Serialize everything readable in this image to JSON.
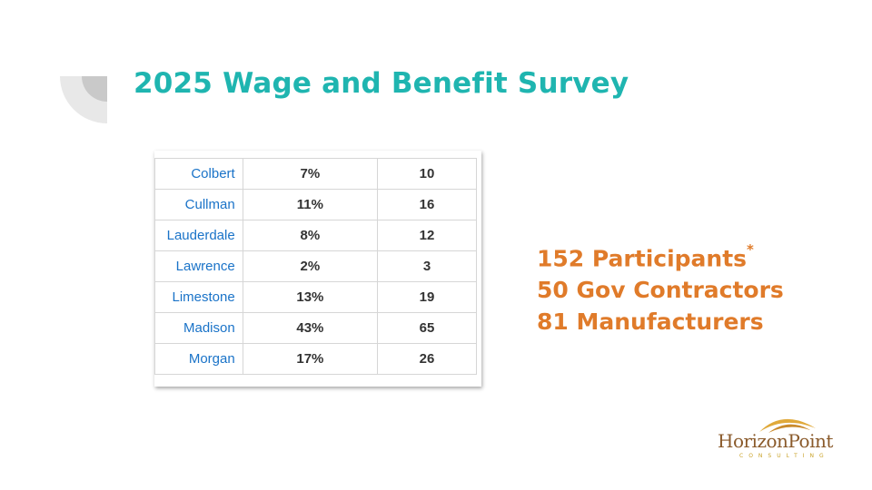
{
  "slide": {
    "title": "2025 Wage and Benefit Survey"
  },
  "table": {
    "rows": [
      {
        "county": "Colbert",
        "percent": "7%",
        "count": "10"
      },
      {
        "county": "Cullman",
        "percent": "11%",
        "count": "16"
      },
      {
        "county": "Lauderdale",
        "percent": "8%",
        "count": "12"
      },
      {
        "county": "Lawrence",
        "percent": "2%",
        "count": "3"
      },
      {
        "county": "Limestone",
        "percent": "13%",
        "count": "19"
      },
      {
        "county": "Madison",
        "percent": "43%",
        "count": "65"
      },
      {
        "county": "Morgan",
        "percent": "17%",
        "count": "26"
      }
    ]
  },
  "stats": {
    "participants": "152 Participants",
    "participants_mark": "*",
    "gov_contractors": "50 Gov Contractors",
    "manufacturers": "81 Manufacturers"
  },
  "logo": {
    "name": "HorizonPoint",
    "tagline": "CONSULTING"
  },
  "colors": {
    "title": "#1fb5b0",
    "stats": "#e07b2a",
    "county_text": "#1a73c8"
  }
}
